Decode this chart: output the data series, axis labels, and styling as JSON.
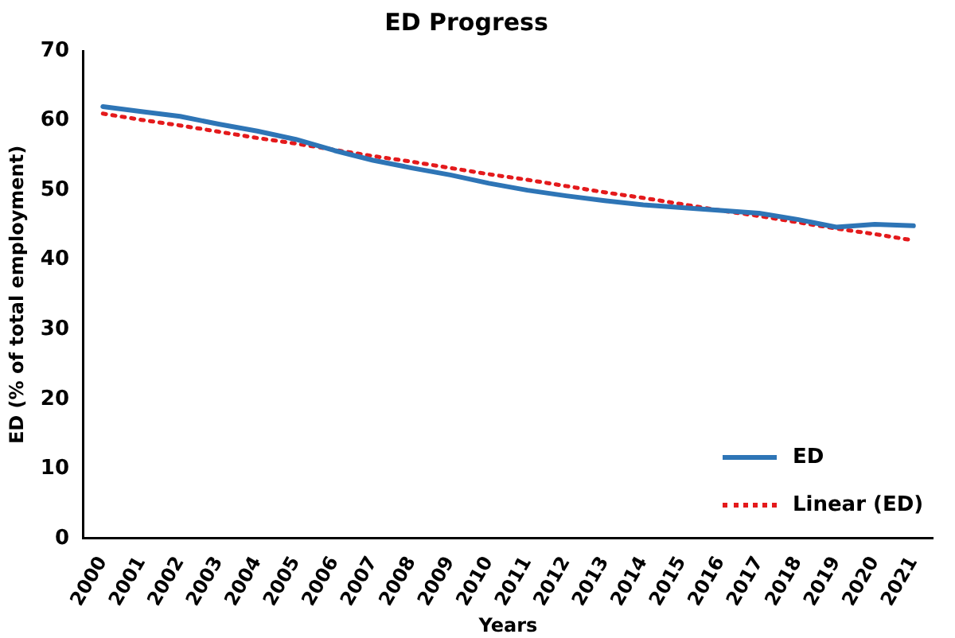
{
  "chart_data": {
    "type": "line",
    "title": "ED Progress",
    "xlabel": "Years",
    "ylabel": "ED (% of total employment)",
    "categories": [
      "2000",
      "2001",
      "2002",
      "2003",
      "2004",
      "2005",
      "2006",
      "2007",
      "2008",
      "2009",
      "2010",
      "2011",
      "2012",
      "2013",
      "2014",
      "2015",
      "2016",
      "2017",
      "2018",
      "2019",
      "2020",
      "2021"
    ],
    "series": [
      {
        "name": "ED",
        "color": "#2e75b6",
        "line_style": "solid",
        "marker": "none",
        "values": [
          62.0,
          61.3,
          60.6,
          59.5,
          58.5,
          57.3,
          55.7,
          54.3,
          53.2,
          52.2,
          51.0,
          50.0,
          49.2,
          48.5,
          47.9,
          47.5,
          47.1,
          46.7,
          45.8,
          44.7,
          45.1,
          44.9
        ]
      },
      {
        "name": "Linear (ED)",
        "color": "#e41a1c",
        "line_style": "dotted",
        "marker": "none",
        "values": [
          61.0,
          60.1,
          59.3,
          58.4,
          57.5,
          56.7,
          55.8,
          54.9,
          54.1,
          53.2,
          52.3,
          51.5,
          50.6,
          49.7,
          48.9,
          48.0,
          47.1,
          46.3,
          45.4,
          44.5,
          43.7,
          42.8
        ]
      }
    ],
    "ylim": [
      0,
      70
    ],
    "yticks": [
      0,
      10,
      20,
      30,
      40,
      50,
      60,
      70
    ],
    "grid": false,
    "legend": "bottom right"
  }
}
